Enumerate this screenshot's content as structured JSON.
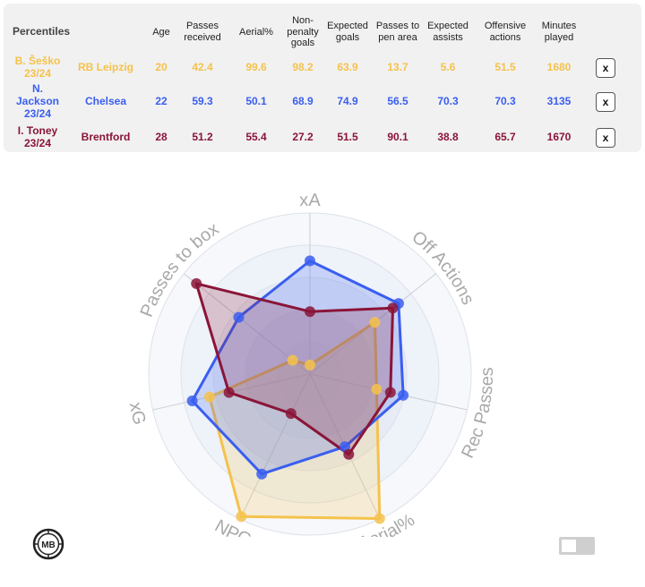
{
  "table": {
    "first_header": "Percentiles",
    "headers": [
      "Age",
      "Passes received",
      "Aerial%",
      "Non-penalty goals",
      "Expected goals",
      "Passes to pen area",
      "Expected assists",
      "Offensive actions",
      "Minutes played"
    ],
    "close_label": "x",
    "rows": [
      {
        "player": "B. Šeško 23/24",
        "team": "RB Leipzig",
        "color": "#f5c24c",
        "values": [
          "20",
          "42.4",
          "99.6",
          "98.2",
          "63.9",
          "13.7",
          "5.6",
          "51.5",
          "1680"
        ]
      },
      {
        "player": "N. Jackson 23/24",
        "team": "Chelsea",
        "color": "#3a5ef0",
        "values": [
          "22",
          "59.3",
          "50.1",
          "68.9",
          "74.9",
          "56.5",
          "70.3",
          "70.3",
          "3135"
        ]
      },
      {
        "player": "I. Toney 23/24",
        "team": "Brentford",
        "color": "#8a1538",
        "values": [
          "28",
          "51.2",
          "55.4",
          "27.2",
          "51.5",
          "90.1",
          "38.8",
          "65.7",
          "1670"
        ]
      }
    ]
  },
  "chart_data": {
    "type": "radar",
    "axes": [
      "xA",
      "Off Actions",
      "Rec Passes",
      "Aerial%",
      "NPG",
      "xG",
      "Passes to box"
    ],
    "range": [
      0,
      100
    ],
    "series": [
      {
        "name": "B. Šeško 23/24",
        "color": "#f5c24c",
        "values": [
          5.6,
          51.5,
          42.4,
          99.6,
          98.2,
          63.9,
          13.7
        ]
      },
      {
        "name": "N. Jackson 23/24",
        "color": "#3a5ef0",
        "values": [
          70.3,
          70.3,
          59.3,
          50.1,
          68.9,
          74.9,
          56.5
        ]
      },
      {
        "name": "I. Toney 23/24",
        "color": "#8a1538",
        "values": [
          38.8,
          65.7,
          51.2,
          55.4,
          27.2,
          51.5,
          90.1
        ]
      }
    ]
  },
  "logo_text": "MB",
  "toggle": {
    "state": "off"
  }
}
